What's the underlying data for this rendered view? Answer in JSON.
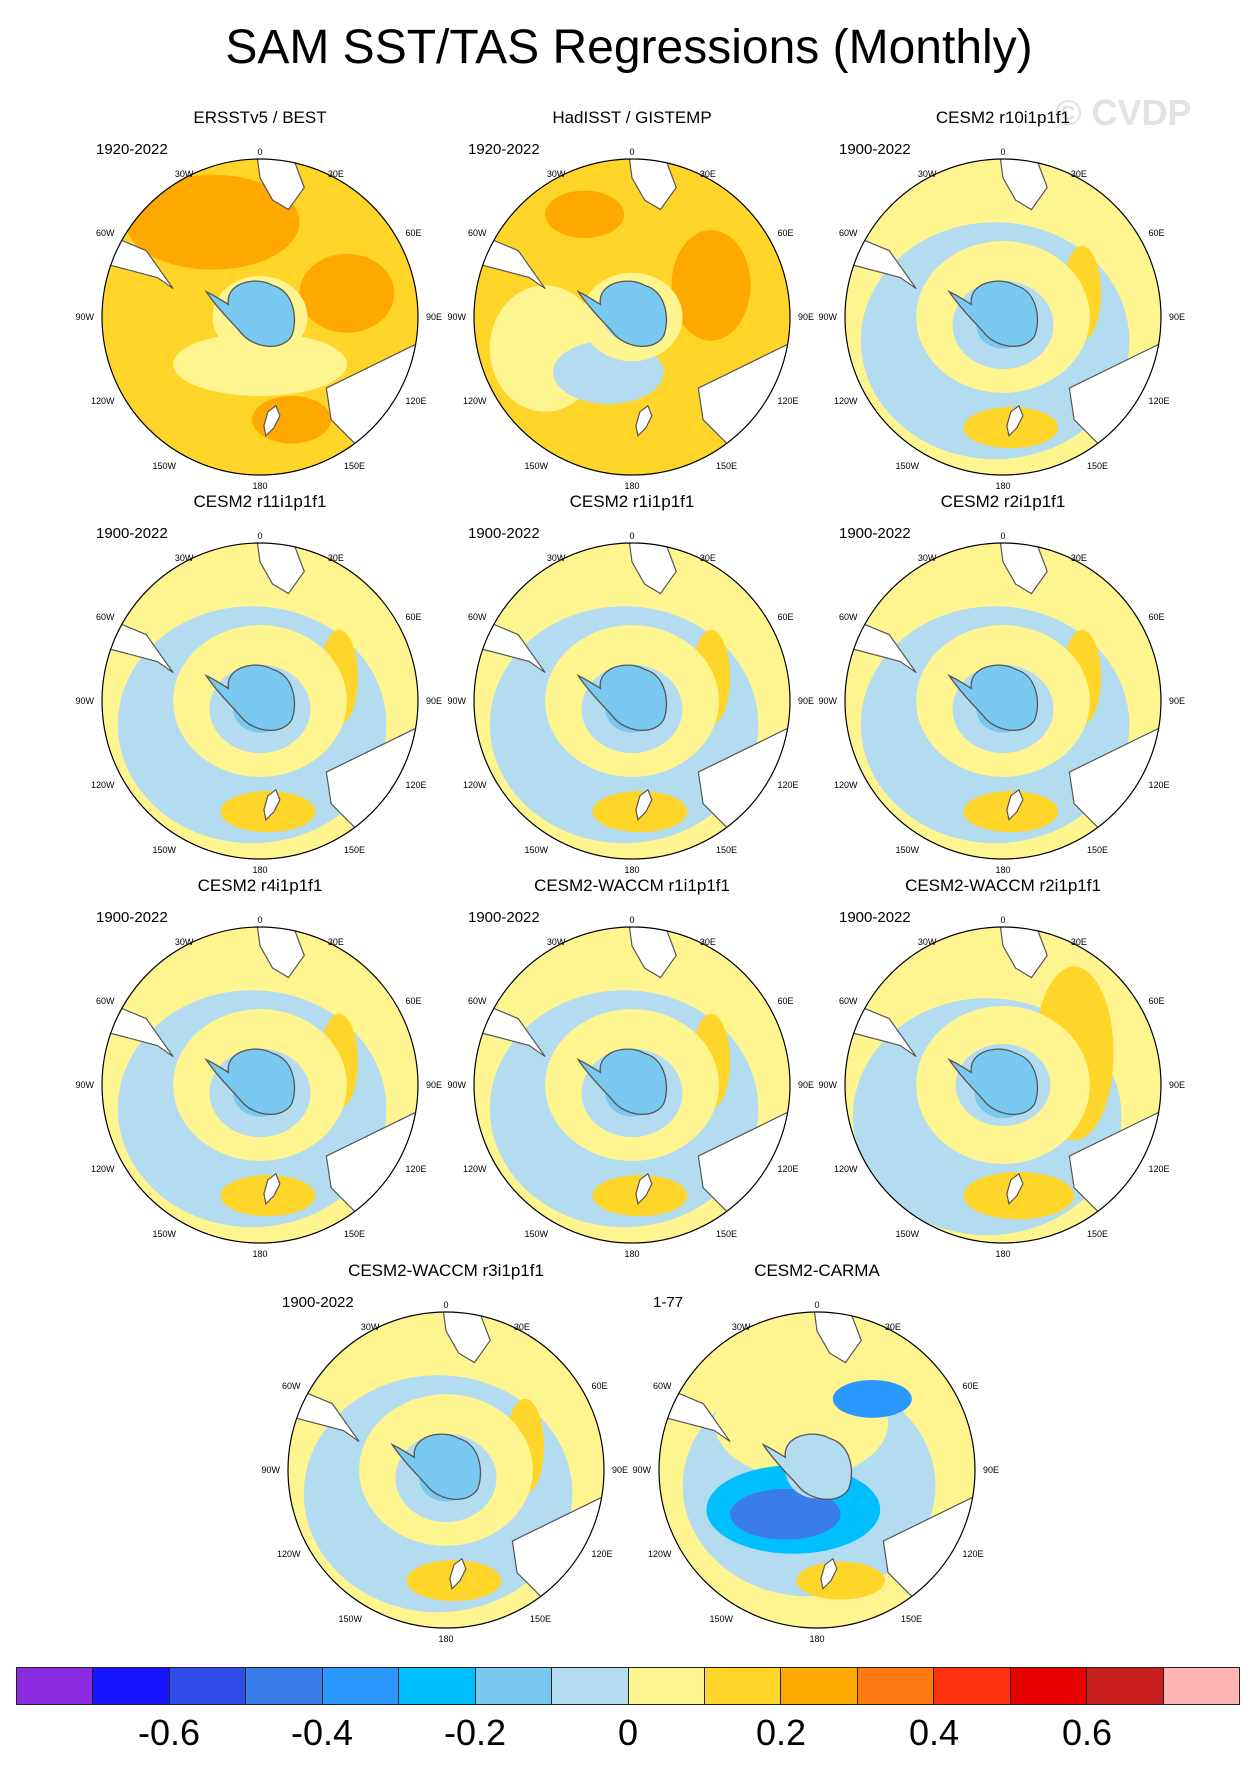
{
  "title": "SAM SST/TAS Regressions (Monthly)",
  "watermark": "© CVDP",
  "colors": {
    "scale": [
      "#8a2be2",
      "#1414ff",
      "#2d4ce8",
      "#3b7de8",
      "#2a98ff",
      "#00bfff",
      "#78c8f0",
      "#b4dcf0",
      "#fff590",
      "#ffd52a",
      "#ffa800",
      "#ff7a10",
      "#ff3210",
      "#e60000",
      "#c81e1e",
      "#ffb4b4"
    ],
    "land": "#ffffff",
    "antarctica": "#b4dcf0",
    "coast": "#555555"
  },
  "panels": [
    {
      "title": "ERSSTv5 / BEST",
      "period": "1920-2022",
      "pattern": "obs1"
    },
    {
      "title": "HadISST / GISTEMP",
      "period": "1920-2022",
      "pattern": "obs2"
    },
    {
      "title": "CESM2 r10i1p1f1",
      "period": "1900-2022",
      "pattern": "model"
    },
    {
      "title": "CESM2 r11i1p1f1",
      "period": "1900-2022",
      "pattern": "model"
    },
    {
      "title": "CESM2 r1i1p1f1",
      "period": "1900-2022",
      "pattern": "model"
    },
    {
      "title": "CESM2 r2i1p1f1",
      "period": "1900-2022",
      "pattern": "model"
    },
    {
      "title": "CESM2 r4i1p1f1",
      "period": "1900-2022",
      "pattern": "model"
    },
    {
      "title": "CESM2-WACCM r1i1p1f1",
      "period": "1900-2022",
      "pattern": "model"
    },
    {
      "title": "CESM2-WACCM r2i1p1f1",
      "period": "1900-2022",
      "pattern": "model_warm"
    },
    {
      "title": "CESM2-WACCM r3i1p1f1",
      "period": "1900-2022",
      "pattern": "model"
    },
    {
      "title": "CESM2-CARMA",
      "period": "1-77",
      "pattern": "carma"
    }
  ],
  "lon_labels": [
    "0",
    "30E",
    "60E",
    "90E",
    "120E",
    "150E",
    "180",
    "150W",
    "120W",
    "90W",
    "60W",
    "30W"
  ],
  "colorbar": {
    "tick_labels": [
      "-0.6",
      "-0.4",
      "-0.2",
      "0",
      "0.2",
      "0.4",
      "0.6"
    ]
  }
}
